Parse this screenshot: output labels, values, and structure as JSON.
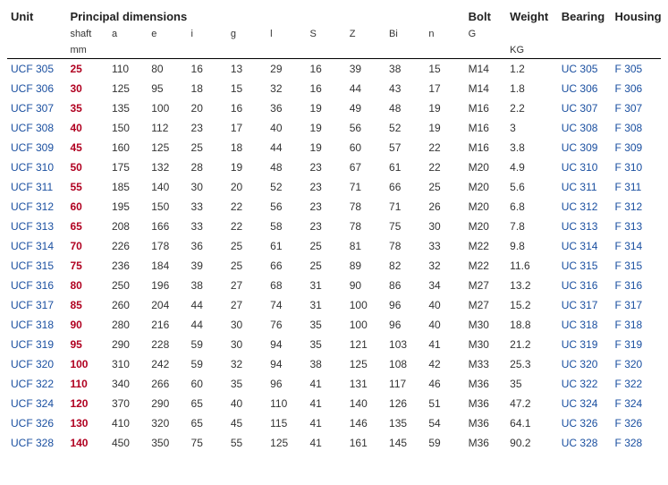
{
  "headers": {
    "unit": "Unit",
    "principal": "Principal dimensions",
    "bolt": "Bolt",
    "weight": "Weight",
    "bearing": "Bearing",
    "housing": "Housing",
    "sub_shaft": "shaft",
    "sub_a": "a",
    "sub_e": "e",
    "sub_i": "i",
    "sub_g": "g",
    "sub_l": "l",
    "sub_S": "S",
    "sub_Z": "Z",
    "sub_Bi": "Bi",
    "sub_n": "n",
    "sub_G": "G",
    "unit_mm": "mm",
    "unit_kg": "KG"
  },
  "style": {
    "link_color": "#1a4fa0",
    "shaft_color": "#b00020",
    "header_border": "#000000",
    "bg": "#ffffff",
    "text": "#333333",
    "font_size_body": 12,
    "font_size_header": 13
  },
  "rows": [
    {
      "unit": "UCF 305",
      "shaft": "25",
      "a": "110",
      "e": "80",
      "i": "16",
      "g": "13",
      "l": "29",
      "S": "16",
      "Z": "39",
      "Bi": "38",
      "n": "15",
      "G": "M14",
      "weight": "1.2",
      "bearing": "UC 305",
      "housing": "F 305"
    },
    {
      "unit": "UCF 306",
      "shaft": "30",
      "a": "125",
      "e": "95",
      "i": "18",
      "g": "15",
      "l": "32",
      "S": "16",
      "Z": "44",
      "Bi": "43",
      "n": "17",
      "G": "M14",
      "weight": "1.8",
      "bearing": "UC 306",
      "housing": "F 306"
    },
    {
      "unit": "UCF 307",
      "shaft": "35",
      "a": "135",
      "e": "100",
      "i": "20",
      "g": "16",
      "l": "36",
      "S": "19",
      "Z": "49",
      "Bi": "48",
      "n": "19",
      "G": "M16",
      "weight": "2.2",
      "bearing": "UC 307",
      "housing": "F 307"
    },
    {
      "unit": "UCF 308",
      "shaft": "40",
      "a": "150",
      "e": "112",
      "i": "23",
      "g": "17",
      "l": "40",
      "S": "19",
      "Z": "56",
      "Bi": "52",
      "n": "19",
      "G": "M16",
      "weight": "3",
      "bearing": "UC 308",
      "housing": "F 308"
    },
    {
      "unit": "UCF 309",
      "shaft": "45",
      "a": "160",
      "e": "125",
      "i": "25",
      "g": "18",
      "l": "44",
      "S": "19",
      "Z": "60",
      "Bi": "57",
      "n": "22",
      "G": "M16",
      "weight": "3.8",
      "bearing": "UC 309",
      "housing": "F 309"
    },
    {
      "unit": "UCF 310",
      "shaft": "50",
      "a": "175",
      "e": "132",
      "i": "28",
      "g": "19",
      "l": "48",
      "S": "23",
      "Z": "67",
      "Bi": "61",
      "n": "22",
      "G": "M20",
      "weight": "4.9",
      "bearing": "UC 310",
      "housing": "F 310"
    },
    {
      "unit": "UCF 311",
      "shaft": "55",
      "a": "185",
      "e": "140",
      "i": "30",
      "g": "20",
      "l": "52",
      "S": "23",
      "Z": "71",
      "Bi": "66",
      "n": "25",
      "G": "M20",
      "weight": "5.6",
      "bearing": "UC 311",
      "housing": "F 311"
    },
    {
      "unit": "UCF 312",
      "shaft": "60",
      "a": "195",
      "e": "150",
      "i": "33",
      "g": "22",
      "l": "56",
      "S": "23",
      "Z": "78",
      "Bi": "71",
      "n": "26",
      "G": "M20",
      "weight": "6.8",
      "bearing": "UC 312",
      "housing": "F 312"
    },
    {
      "unit": "UCF 313",
      "shaft": "65",
      "a": "208",
      "e": "166",
      "i": "33",
      "g": "22",
      "l": "58",
      "S": "23",
      "Z": "78",
      "Bi": "75",
      "n": "30",
      "G": "M20",
      "weight": "7.8",
      "bearing": "UC 313",
      "housing": "F 313"
    },
    {
      "unit": "UCF 314",
      "shaft": "70",
      "a": "226",
      "e": "178",
      "i": "36",
      "g": "25",
      "l": "61",
      "S": "25",
      "Z": "81",
      "Bi": "78",
      "n": "33",
      "G": "M22",
      "weight": "9.8",
      "bearing": "UC 314",
      "housing": "F 314"
    },
    {
      "unit": "UCF 315",
      "shaft": "75",
      "a": "236",
      "e": "184",
      "i": "39",
      "g": "25",
      "l": "66",
      "S": "25",
      "Z": "89",
      "Bi": "82",
      "n": "32",
      "G": "M22",
      "weight": "11.6",
      "bearing": "UC 315",
      "housing": "F 315"
    },
    {
      "unit": "UCF 316",
      "shaft": "80",
      "a": "250",
      "e": "196",
      "i": "38",
      "g": "27",
      "l": "68",
      "S": "31",
      "Z": "90",
      "Bi": "86",
      "n": "34",
      "G": "M27",
      "weight": "13.2",
      "bearing": "UC 316",
      "housing": "F 316"
    },
    {
      "unit": "UCF 317",
      "shaft": "85",
      "a": "260",
      "e": "204",
      "i": "44",
      "g": "27",
      "l": "74",
      "S": "31",
      "Z": "100",
      "Bi": "96",
      "n": "40",
      "G": "M27",
      "weight": "15.2",
      "bearing": "UC 317",
      "housing": "F 317"
    },
    {
      "unit": "UCF 318",
      "shaft": "90",
      "a": "280",
      "e": "216",
      "i": "44",
      "g": "30",
      "l": "76",
      "S": "35",
      "Z": "100",
      "Bi": "96",
      "n": "40",
      "G": "M30",
      "weight": "18.8",
      "bearing": "UC 318",
      "housing": "F 318"
    },
    {
      "unit": "UCF 319",
      "shaft": "95",
      "a": "290",
      "e": "228",
      "i": "59",
      "g": "30",
      "l": "94",
      "S": "35",
      "Z": "121",
      "Bi": "103",
      "n": "41",
      "G": "M30",
      "weight": "21.2",
      "bearing": "UC 319",
      "housing": "F 319"
    },
    {
      "unit": "UCF 320",
      "shaft": "100",
      "a": "310",
      "e": "242",
      "i": "59",
      "g": "32",
      "l": "94",
      "S": "38",
      "Z": "125",
      "Bi": "108",
      "n": "42",
      "G": "M33",
      "weight": "25.3",
      "bearing": "UC 320",
      "housing": "F 320"
    },
    {
      "unit": "UCF 322",
      "shaft": "110",
      "a": "340",
      "e": "266",
      "i": "60",
      "g": "35",
      "l": "96",
      "S": "41",
      "Z": "131",
      "Bi": "117",
      "n": "46",
      "G": "M36",
      "weight": "35",
      "bearing": "UC 322",
      "housing": "F 322"
    },
    {
      "unit": "UCF 324",
      "shaft": "120",
      "a": "370",
      "e": "290",
      "i": "65",
      "g": "40",
      "l": "110",
      "S": "41",
      "Z": "140",
      "Bi": "126",
      "n": "51",
      "G": "M36",
      "weight": "47.2",
      "bearing": "UC 324",
      "housing": "F 324"
    },
    {
      "unit": "UCF 326",
      "shaft": "130",
      "a": "410",
      "e": "320",
      "i": "65",
      "g": "45",
      "l": "115",
      "S": "41",
      "Z": "146",
      "Bi": "135",
      "n": "54",
      "G": "M36",
      "weight": "64.1",
      "bearing": "UC 326",
      "housing": "F 326"
    },
    {
      "unit": "UCF 328",
      "shaft": "140",
      "a": "450",
      "e": "350",
      "i": "75",
      "g": "55",
      "l": "125",
      "S": "41",
      "Z": "161",
      "Bi": "145",
      "n": "59",
      "G": "M36",
      "weight": "90.2",
      "bearing": "UC 328",
      "housing": "F 328"
    }
  ]
}
